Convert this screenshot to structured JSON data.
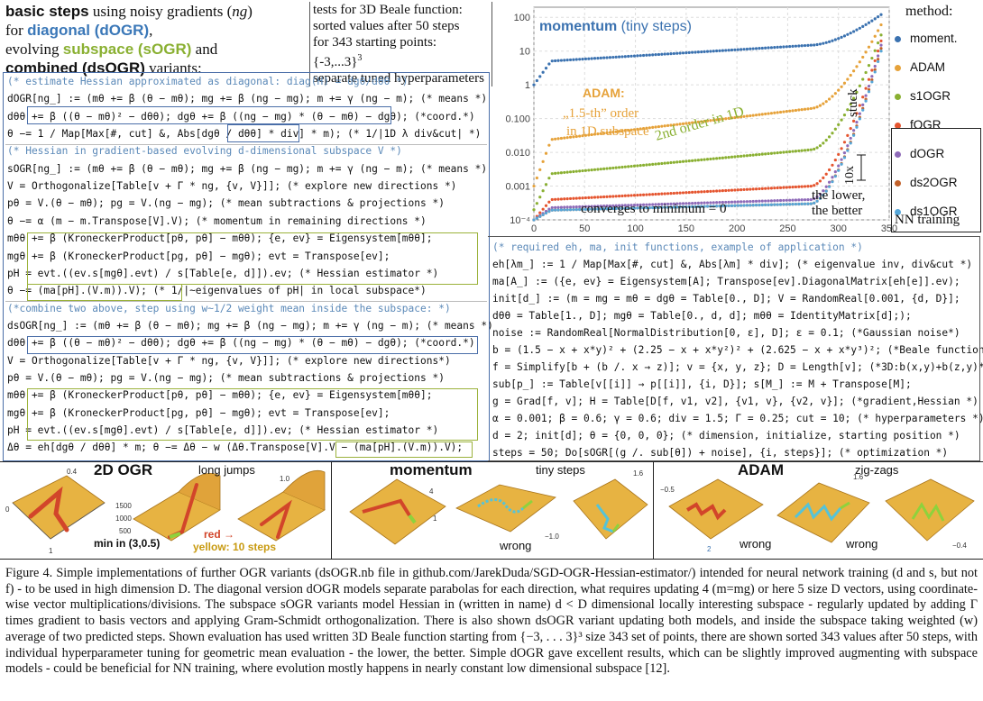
{
  "intro": {
    "p1_bold": "basic steps",
    "p1_rest": " using noisy gradients (",
    "p1_ng": "ng",
    "p1_end": ")",
    "p2_pre": "for ",
    "p2_diag": "diagonal (dOGR)",
    "p2_end": ",",
    "p3_pre": "evolving ",
    "p3_sub": "subspace (sOGR)",
    "p3_end": " and",
    "p4_comb": "combined (dsOGR)",
    "p4_end": " variants:"
  },
  "testbox": {
    "l1": "tests for 3D Beale function:",
    "l2": "sorted values after 50 steps",
    "l3": "for 343 starting points: {-3,...3}",
    "l3_sup": "3",
    "l4": "separate tuned hyperparameters"
  },
  "code_left": [
    {
      "t": "(* estimate Hessian approximated as diagonal: diag(H) = dgθ/dθθ *)",
      "c": "cmt"
    },
    {
      "t": "dOGR[ng_] := (mθ += β (θ − mθ); mg += β (ng − mg); m += γ (ng − m);    (* means *)"
    },
    {
      "t": "  dθθ += β ((θ − mθ)² − dθθ); dgθ += β ((ng − mg) * (θ − mθ) − dgθ); (*coord.*)"
    },
    {
      "t": "  θ −= 1 / Map[Max[#, cut] &, Abs[dgθ / dθθ] * div] * m);  (* 1/|1D λ div&cut| *)"
    },
    {
      "t": "(* Hessian in gradient-based evolving d-dimensional subspace V *)",
      "c": "cmt"
    },
    {
      "t": "sOGR[ng_] := (mθ += β (θ − mθ); mg += β (ng − mg); m += γ (ng − m);  (* means *)"
    },
    {
      "t": "  V = Orthogonalize[Table[v + Γ * ng, {v, V}]];   (* explore new directions *)"
    },
    {
      "t": "  pθ = V.(θ − mθ); pg = V.(ng − mg);    (* mean subtractions & projections *)"
    },
    {
      "t": "  θ −= α (m − m.Transpose[V].V);  (* momentum in remaining  directions *)"
    },
    {
      "t": "  mθθ += β (KroneckerProduct[pθ, pθ] − mθθ); {e, ev} = Eigensystem[mθθ];"
    },
    {
      "t": "  mgθ += β (KroneckerProduct[pg, pθ] − mgθ); evt = Transpose[ev];"
    },
    {
      "t": "  pH = evt.((ev.s[mgθ].evt) / s[Table[e, d]]).ev;  (* Hessian estimator *)"
    },
    {
      "t": "  θ −= (ma[pH].(V.m)).V);   (* 1/|~eigenvalues of pH| in local subspace*)"
    },
    {
      "t": "(*combine two above, step using w~1/2 weight mean inside the subspace: *)",
      "c": "cmt"
    },
    {
      "t": "dsOGR[ng_] := (mθ += β (θ − mθ); mg += β (ng − mg); m += γ (ng − m);  (* means *)"
    },
    {
      "t": "  dθθ += β ((θ − mθ)² − dθθ); dgθ += β ((ng − mg) * (θ − mθ) − dgθ);  (*coord.*)"
    },
    {
      "t": "  V = Orthogonalize[Table[v + Γ * ng, {v, V}]];   (* explore new directions*)"
    },
    {
      "t": "  pθ = V.(θ − mθ); pg = V.(ng − mg);     (* mean subtractions & projections *)"
    },
    {
      "t": "  mθθ += β (KroneckerProduct[pθ, pθ] − mθθ); {e, ev} = Eigensystem[mθθ];"
    },
    {
      "t": "  mgθ += β (KroneckerProduct[pg, pθ] − mgθ); evt = Transpose[ev];"
    },
    {
      "t": "  pH = evt.((ev.s[mgθ].evt) / s[Table[e, d]]).ev;   (* Hessian estimator *)"
    },
    {
      "t": "  Δθ = eh[dgθ / dθθ] * m; θ −= Δθ − w (Δθ.Transpose[V].V − (ma[pH].(V.m)).V);"
    }
  ],
  "code_right": [
    {
      "t": "(* required eh, ma, init functions, example of application *)",
      "c": "cmt"
    },
    {
      "t": "eh[λm_] := 1 / Map[Max[#, cut] &, Abs[λm] * div]; (* eigenvalue inv, div&cut *)"
    },
    {
      "t": "ma[A_] := ({e, ev} = Eigensystem[A]; Transpose[ev].DiagonalMatrix[eh[e]].ev);"
    },
    {
      "t": "init[d_] := (m = mg = mθ = dgθ = Table[0., D]; V = RandomReal[0.001, {d, D}];"
    },
    {
      "t": "     dθθ = Table[1., D]; mgθ = Table[0., d, d]; mθθ = IdentityMatrix[d];);"
    },
    {
      "t": "noise := RandomReal[NormalDistribution[0, ε], D]; ε = 0.1;  (*Gaussian noise*)"
    },
    {
      "t": "b = (1.5 − x + x*y)² + (2.25 − x + x*y²)² + (2.625 − x + x*y³)²; (*Beale function*)"
    },
    {
      "t": "f = Simplify[b + (b /. x → z)]; v = {x, y, z}; D = Length[v]; (*3D:b(x,y)+b(z,y)*)"
    },
    {
      "t": "sub[p_] := Table[v[[i]] → p[[i]], {i, D}]; s[M_] := M + Transpose[M];"
    },
    {
      "t": "g = Grad[f, v]; H = Table[D[f, v1, v2], {v1, v}, {v2, v}]; (*gradient,Hessian *)"
    },
    {
      "t": "α = 0.001; β = 0.6; γ = 0.6; div = 1.5; Γ = 0.25; cut = 10;  (* hyperparameters *)"
    },
    {
      "t": "d = 2; init[d]; θ = {0, 0, 0};   (* dimension, initialize, starting position *)"
    },
    {
      "t": "steps = 50; Do[sOGR[(g /. sub[θ]) + noise], {i, steps}];   (* optimization *)"
    }
  ],
  "chart_data": {
    "type": "scatter",
    "xlabel": "",
    "ylabel": "",
    "x_ticks": [
      "0",
      "50",
      "100",
      "150",
      "200",
      "250",
      "300",
      "350"
    ],
    "y_ticks": [
      "10⁻⁴",
      "0.001",
      "0.010",
      "0.100",
      "1",
      "10",
      "100"
    ],
    "xlim": [
      0,
      343
    ],
    "ylim_log10": [
      -4,
      2.3
    ],
    "series": [
      {
        "name": "moment.",
        "color": "#3b72b0",
        "start": 1.0,
        "end": 120,
        "mid": 15,
        "shape": "momentum"
      },
      {
        "name": "ADAM",
        "color": "#e6a23a",
        "start": 0.001,
        "end": 60,
        "mid": 0.2,
        "shape": "adam"
      },
      {
        "name": "s1OGR",
        "color": "#8ab032",
        "start": 0.0002,
        "end": 30,
        "mid": 0.012,
        "shape": "s1ogr"
      },
      {
        "name": "fOGR",
        "color": "#e5552f",
        "start": 0.0001,
        "end": 20,
        "mid": 0.001,
        "shape": "fogr"
      },
      {
        "name": "dOGR",
        "color": "#8e6ab8",
        "start": 0.0001,
        "end": 15,
        "mid": 0.0004,
        "shape": "dogr"
      },
      {
        "name": "ds2OGR",
        "color": "#c2612a",
        "start": 0.0001,
        "end": 12,
        "mid": 0.0003,
        "shape": "ds2ogr"
      },
      {
        "name": "ds1OGR",
        "color": "#55a6d8",
        "start": 0.0001,
        "end": 10,
        "mid": 0.0003,
        "shape": "ds1ogr"
      }
    ],
    "annotations": {
      "momentum_a": "momentum",
      "momentum_b": " (tiny steps)",
      "adam_title": "ADAM:",
      "adam_l1": "„1.5-th” order",
      "adam_l2": "in 1D subspace",
      "second_order": "2nd order in 1D",
      "stuck": "stuck",
      "tenx": "10x",
      "lower1": "the lower,",
      "lower2": "the better",
      "converges": "converges to minimum = 0"
    }
  },
  "legend": {
    "title": "method:",
    "nn_training": "NN training"
  },
  "strip": {
    "ogr_title": "2D OGR",
    "ogr_note": "long jumps",
    "ogr_min": "min in (3,0.5)",
    "ogr_red": "red →",
    "ogr_yellow": "yellow: 10 steps",
    "mom_title": "momentum",
    "mom_note": "tiny steps",
    "mom_wrong": "wrong",
    "adam_title": "ADAM",
    "adam_note": "zig-zags",
    "adam_wrong1": "wrong",
    "adam_wrong2": "wrong"
  },
  "caption": {
    "text": "Figure 4.   Simple implementations of further OGR variants (dsOGR.nb file in github.com/JarekDuda/SGD-OGR-Hessian-estimator/) intended for neural network training (d and s, but not f) - to be used in high dimension D. The diagonal version dOGR models separate parabolas for each direction, what requires updating 4 (m=mg) or here 5 size D vectors, using coordinate-wise vector multiplications/divisions. The subspace sOGR variants model Hessian in (written in name) d < D dimensional locally interesting subspace - regularly updated by adding Γ times gradient to basis vectors and applying Gram-Schmidt orthogonalization. There is also shown dsOGR variant updating both models, and inside the subspace taking weighted (w) average of two predicted steps. Shown evaluation has used written 3D Beale function starting from {−3, . . . 3}³ size 343 set of points, there are shown sorted 343 values after 50 steps, with individual hyperparameter tuning for geometric mean evaluation - the lower, the better. Simple dOGR gave excellent results, which can be slightly improved augmenting with subspace models - could be beneficial for NN training, where evolution mostly happens in nearly constant low dimensional subspace [12]."
  }
}
